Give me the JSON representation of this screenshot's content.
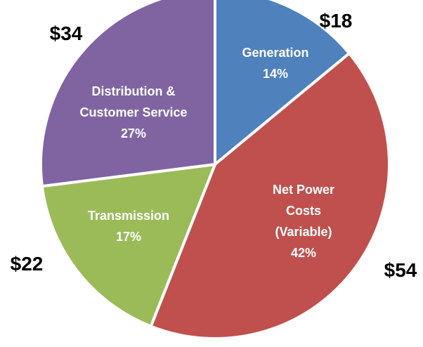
{
  "chart_data": {
    "type": "pie",
    "categories": [
      "Generation",
      "Net Power Costs (Variable)",
      "Transmission",
      "Distribution & Customer Service"
    ],
    "values": [
      14,
      42,
      17,
      27
    ],
    "value_labels": [
      "14%",
      "42%",
      "17%",
      "27%"
    ],
    "outer_labels": [
      "$18",
      "$54",
      "$22",
      "$34"
    ],
    "colors": [
      "#4f81bd",
      "#c0504d",
      "#9bbb59",
      "#8064a2"
    ]
  }
}
